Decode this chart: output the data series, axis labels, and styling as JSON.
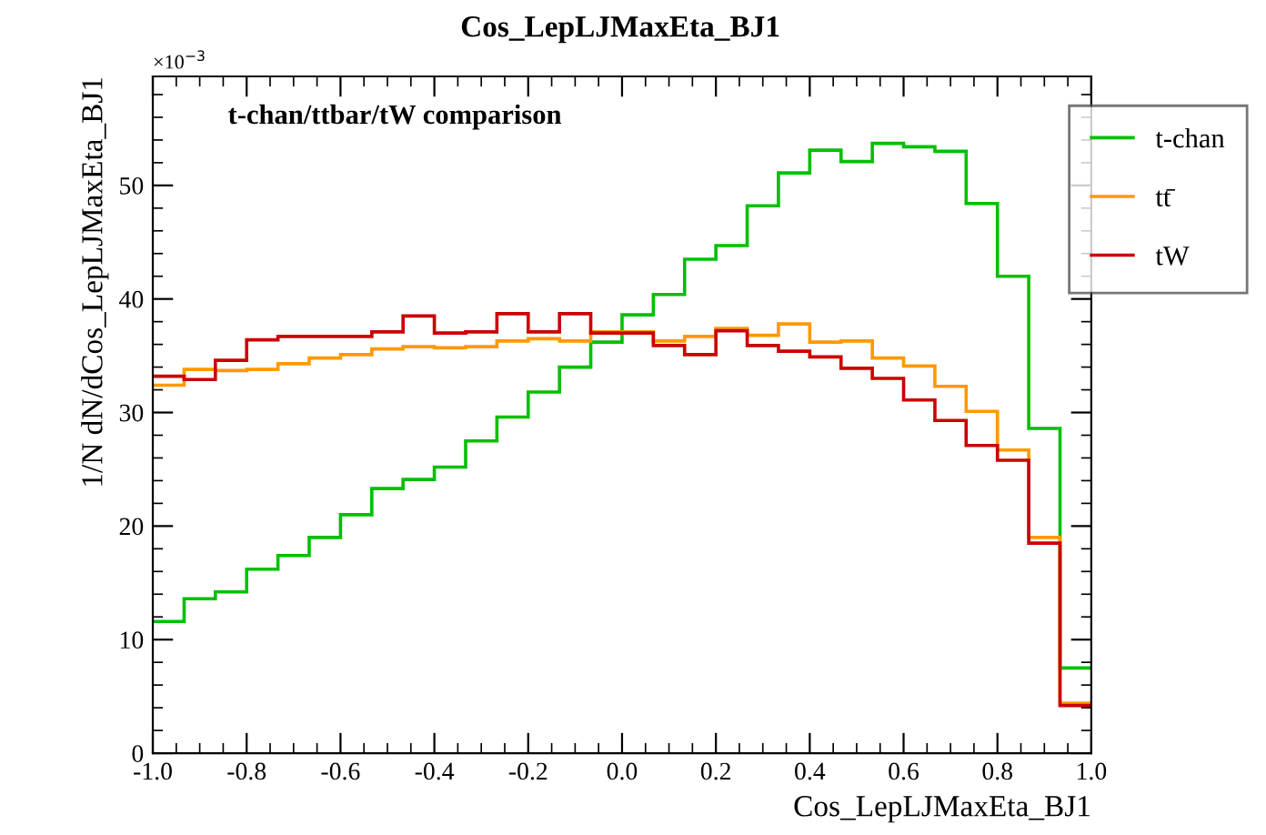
{
  "chart_data": {
    "type": "histogram",
    "title": "Cos_LepLJMaxEta_BJ1",
    "xlabel": "Cos_LepLJMaxEta_BJ1",
    "ylabel": "1/N dN/dCos_LepLJMaxEta_BJ1",
    "annotations": [
      "×10$^{−3}$",
      "t-chan/ttbar/tW comparison"
    ],
    "bins": [
      -1.0,
      -0.9333,
      -0.8667,
      -0.8,
      -0.7333,
      -0.6667,
      -0.6,
      -0.5333,
      -0.4667,
      -0.4,
      -0.3333,
      -0.2667,
      -0.2,
      -0.1333,
      -0.0667,
      0.0,
      0.0667,
      0.1333,
      0.2,
      0.2667,
      0.3333,
      0.4,
      0.4667,
      0.5333,
      0.6,
      0.6667,
      0.7333,
      0.8,
      0.8667,
      0.9333,
      1.0
    ],
    "series": [
      {
        "name": "t-chan",
        "color": "#00c000",
        "values": [
          11.6,
          13.6,
          14.2,
          16.2,
          17.4,
          19.0,
          21.0,
          23.3,
          24.1,
          25.2,
          27.5,
          29.6,
          31.8,
          34.0,
          36.2,
          38.6,
          40.4,
          43.5,
          44.7,
          48.2,
          51.1,
          53.1,
          52.1,
          53.7,
          53.4,
          53.0,
          48.4,
          42.0,
          28.6,
          7.5
        ]
      },
      {
        "name": "tt̄",
        "color": "#ff9900",
        "values": [
          32.4,
          33.8,
          33.7,
          33.8,
          34.3,
          34.8,
          35.1,
          35.6,
          35.8,
          35.7,
          35.8,
          36.3,
          36.5,
          36.3,
          37.1,
          37.1,
          36.3,
          36.7,
          37.4,
          36.8,
          37.8,
          36.2,
          36.3,
          34.8,
          34.1,
          32.3,
          30.1,
          26.7,
          19.0,
          4.4
        ]
      },
      {
        "name": "tW",
        "color": "#cc0000",
        "values": [
          33.2,
          32.9,
          34.6,
          36.4,
          36.7,
          36.7,
          36.7,
          37.1,
          38.5,
          37.0,
          37.1,
          38.7,
          37.1,
          38.7,
          37.0,
          37.0,
          35.9,
          35.1,
          37.2,
          35.9,
          35.4,
          34.9,
          33.9,
          33.0,
          31.1,
          29.3,
          27.1,
          25.8,
          18.5,
          4.2
        ]
      }
    ],
    "xlim": [
      -1.0,
      1.0
    ],
    "ylim": [
      0,
      59.6
    ],
    "xticks": [
      {
        "value": -1.0,
        "label": "-1.0"
      },
      {
        "value": -0.8,
        "label": "-0.8"
      },
      {
        "value": -0.6,
        "label": "-0.6"
      },
      {
        "value": -0.4,
        "label": "-0.4"
      },
      {
        "value": -0.2,
        "label": "-0.2"
      },
      {
        "value": 0.0,
        "label": "0.0"
      },
      {
        "value": 0.2,
        "label": "0.2"
      },
      {
        "value": 0.4,
        "label": "0.4"
      },
      {
        "value": 0.6,
        "label": "0.6"
      },
      {
        "value": 0.8,
        "label": "0.8"
      },
      {
        "value": 1.0,
        "label": "1.0"
      }
    ],
    "yticks": [
      0,
      10,
      20,
      30,
      40,
      50
    ],
    "grid": false,
    "legend": "top right"
  }
}
